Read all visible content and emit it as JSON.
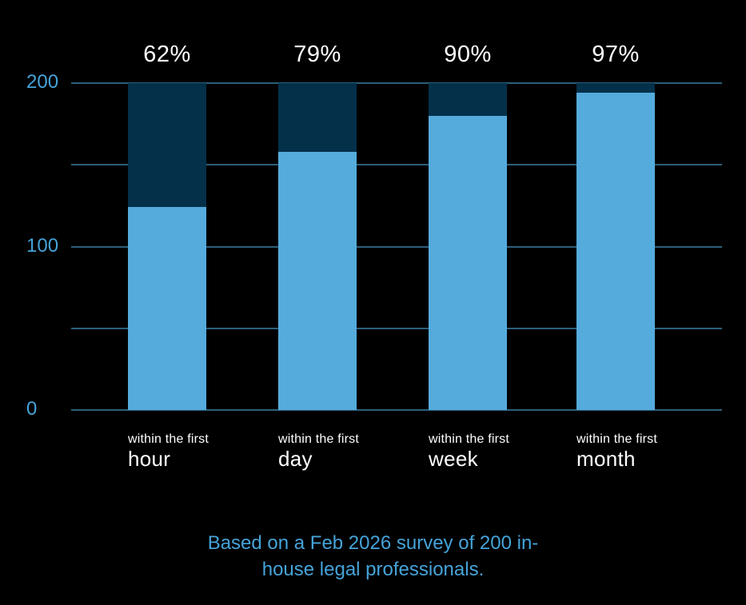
{
  "chart_data": {
    "type": "bar",
    "stacked": true,
    "title": "",
    "categories": [
      "within the first hour",
      "within the first day",
      "within the first week",
      "within the first month"
    ],
    "category_label_prefix": "within the first",
    "category_label_terms": [
      "hour",
      "day",
      "week",
      "month"
    ],
    "bar_percent_labels": [
      "62%",
      "79%",
      "90%",
      "97%"
    ],
    "series": [
      {
        "name": "respondents-within-period",
        "values": [
          124,
          158,
          180,
          194
        ],
        "color": "#55ABDC"
      },
      {
        "name": "remainder-of-200",
        "values": [
          76,
          42,
          20,
          6
        ],
        "color": "#04304A"
      }
    ],
    "total": 200,
    "ylim": [
      0,
      200
    ],
    "ytick_values": [
      0,
      100,
      200
    ],
    "ytick_labels": [
      "0",
      "100",
      "200"
    ],
    "grid_values": [
      0,
      50,
      100,
      150,
      200
    ],
    "grid_on": true,
    "legend_position": "none",
    "xlabel": "",
    "ylabel": "",
    "caption": {
      "line1": "Based on a Feb 2026 survey of 200 in-",
      "line2": "house legal professionals."
    },
    "colors": {
      "background": "#000000",
      "bar_primary": "#55ABDC",
      "bar_secondary": "#04304A",
      "gridline": "#2C5F7B",
      "axis_label": "#45A3D9",
      "caption": "#45A3D9",
      "percent_label": "#FFFFFF",
      "category_label": "#FFFFFF"
    }
  }
}
